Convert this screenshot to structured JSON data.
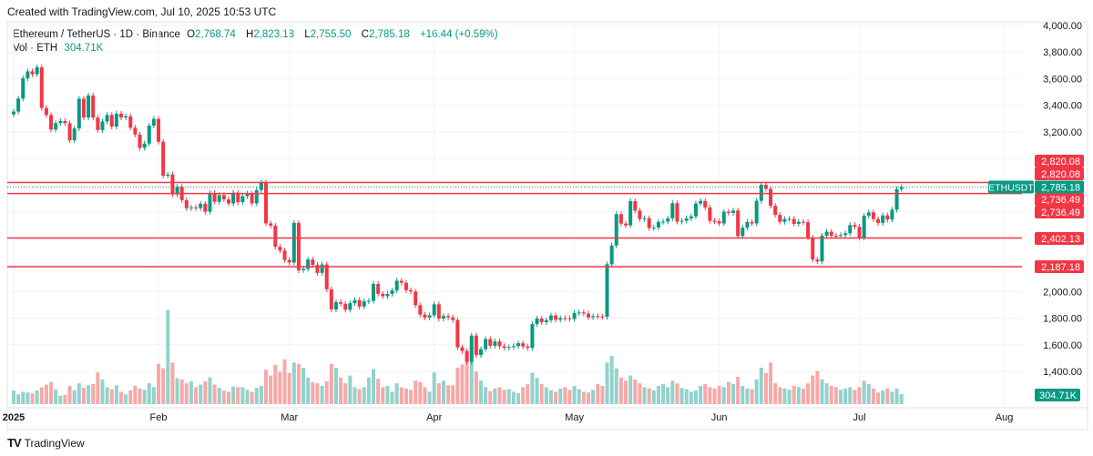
{
  "header": {
    "created": "Created with TradingView.com, Jul 10, 2025 10:53 UTC"
  },
  "legend": {
    "symbol": "Ethereum / TetherUS · 1D · Binance",
    "open_label": "O",
    "open": "2,768.74",
    "high_label": "H",
    "high": "2,823.18",
    "low_label": "L",
    "low": "2,755.50",
    "close_label": "C",
    "close": "2,785.18",
    "change": "+16.44 (+0.59%)",
    "vol_label": "Vol · ETH",
    "vol": "304.71K"
  },
  "footer": {
    "brand": "TradingView",
    "logo_icon": "tradingview-logo-icon"
  },
  "colors": {
    "up": "#089981",
    "down": "#f23645",
    "vol_up": "#92d2cc",
    "vol_down": "#f7a9a7",
    "level_line": "#f23645",
    "grid": "#f0f3fa"
  },
  "chart_data": {
    "type": "candlestick",
    "symbol": "ETHUSDT",
    "interval": "1D",
    "start_date": "2025-01-01",
    "end_date": "2025-07-10",
    "ylim": [
      1300,
      4050
    ],
    "y_ticks": [
      "4,000.00",
      "3,800.00",
      "3,600.00",
      "3,400.00",
      "3,200.00",
      "2,000.00",
      "1,800.00",
      "1,600.00",
      "1,400.00"
    ],
    "y_tick_values": [
      4000,
      3800,
      3600,
      3400,
      3200,
      2000,
      1800,
      1600,
      1400
    ],
    "x_ticks": [
      {
        "label": "2025",
        "date": "2025-01-01"
      },
      {
        "label": "Feb",
        "date": "2025-02-01"
      },
      {
        "label": "Mar",
        "date": "2025-03-01"
      },
      {
        "label": "Apr",
        "date": "2025-04-01"
      },
      {
        "label": "May",
        "date": "2025-05-01"
      },
      {
        "label": "Jun",
        "date": "2025-06-01"
      },
      {
        "label": "Jul",
        "date": "2025-07-01"
      },
      {
        "label": "Aug",
        "date": "2025-08-01"
      }
    ],
    "first_open": 3332,
    "closes": [
      3353,
      3451,
      3603,
      3655,
      3634,
      3686,
      3380,
      3327,
      3218,
      3266,
      3282,
      3265,
      3137,
      3226,
      3449,
      3308,
      3474,
      3307,
      3214,
      3278,
      3327,
      3240,
      3337,
      3308,
      3318,
      3232,
      3180,
      3080,
      3112,
      3247,
      3298,
      3126,
      2870,
      2879,
      2730,
      2787,
      2687,
      2627,
      2632,
      2628,
      2660,
      2600,
      2740,
      2675,
      2725,
      2693,
      2662,
      2743,
      2672,
      2717,
      2737,
      2663,
      2763,
      2820,
      2512,
      2495,
      2336,
      2308,
      2237,
      2218,
      2516,
      2160,
      2171,
      2241,
      2200,
      2140,
      2203,
      2017,
      1865,
      1920,
      1908,
      1863,
      1912,
      1936,
      1887,
      1927,
      1930,
      2057,
      1983,
      1965,
      1982,
      2008,
      2081,
      2066,
      2010,
      2000,
      1897,
      1827,
      1805,
      1821,
      1904,
      1796,
      1816,
      1806,
      1786,
      1580,
      1553,
      1472,
      1669,
      1522,
      1567,
      1643,
      1592,
      1625,
      1589,
      1577,
      1583,
      1590,
      1611,
      1587,
      1577,
      1755,
      1797,
      1769,
      1785,
      1820,
      1788,
      1800,
      1799,
      1793,
      1839,
      1843,
      1834,
      1806,
      1815,
      1813,
      1810,
      2205,
      2346,
      2582,
      2511,
      2497,
      2680,
      2609,
      2545,
      2551,
      2477,
      2481,
      2524,
      2526,
      2550,
      2664,
      2525,
      2532,
      2550,
      2565,
      2661,
      2681,
      2632,
      2531,
      2528,
      2512,
      2600,
      2591,
      2609,
      2417,
      2480,
      2523,
      2512,
      2682,
      2803,
      2772,
      2644,
      2576,
      2524,
      2545,
      2546,
      2509,
      2524,
      2521,
      2405,
      2240,
      2226,
      2420,
      2450,
      2420,
      2418,
      2425,
      2438,
      2500,
      2487,
      2405,
      2570,
      2595,
      2545,
      2516,
      2572,
      2541,
      2615,
      2770,
      2785.18
    ],
    "volumes_k": [
      420,
      300,
      380,
      360,
      330,
      420,
      520,
      600,
      680,
      450,
      260,
      280,
      560,
      430,
      640,
      500,
      580,
      620,
      980,
      760,
      520,
      460,
      580,
      380,
      300,
      420,
      560,
      480,
      440,
      640,
      520,
      1240,
      1100,
      2900,
      1280,
      800,
      760,
      640,
      700,
      520,
      600,
      700,
      820,
      600,
      500,
      420,
      380,
      540,
      520,
      520,
      440,
      380,
      500,
      560,
      1060,
      880,
      1200,
      1000,
      1380,
      960,
      1280,
      1240,
      1120,
      820,
      680,
      640,
      560,
      700,
      1240,
      1120,
      820,
      640,
      880,
      520,
      460,
      520,
      820,
      1080,
      780,
      520,
      560,
      380,
      640,
      520,
      480,
      440,
      720,
      680,
      520,
      380,
      980,
      640,
      720,
      580,
      580,
      1120,
      1220,
      1480,
      1800,
      1000,
      720,
      520,
      400,
      480,
      520,
      440,
      460,
      380,
      340,
      520,
      620,
      960,
      800,
      620,
      520,
      420,
      380,
      480,
      520,
      440,
      560,
      460,
      380,
      360,
      440,
      620,
      560,
      1280,
      1480,
      1100,
      820,
      720,
      880,
      760,
      640,
      520,
      480,
      420,
      560,
      620,
      520,
      720,
      640,
      500,
      460,
      380,
      420,
      560,
      620,
      520,
      480,
      560,
      520,
      680,
      620,
      840,
      560,
      480,
      460,
      760,
      1120,
      960,
      1280,
      640,
      520,
      480,
      440,
      560,
      520,
      480,
      640,
      880,
      1020,
      760,
      640,
      560,
      520,
      440,
      480,
      520,
      440,
      520,
      720,
      620,
      480,
      360,
      420,
      480,
      380,
      480,
      304.71
    ],
    "horizontal_levels": [
      2820.08,
      2736.49,
      2402.13,
      2187.18
    ],
    "level_labels": [
      "2,820.08",
      "2,820.08",
      "2,736.49",
      "2,736.49",
      "2,402.13",
      "2,187.18"
    ],
    "last_price": 2785.18,
    "last_price_label": "2,785.18",
    "symbol_tag": "ETHUSDT",
    "volume_label": "304.71K"
  }
}
